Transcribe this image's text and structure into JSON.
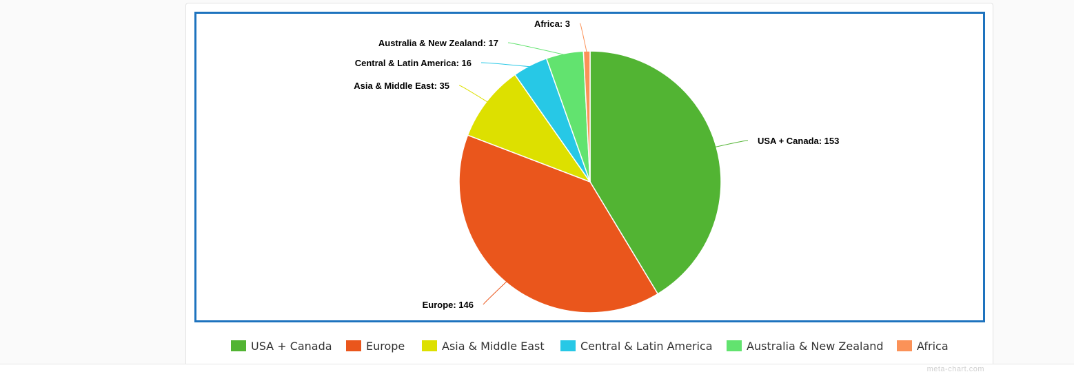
{
  "chart_data": {
    "type": "pie",
    "title": "",
    "categories": [
      "USA + Canada",
      "Europe",
      "Asia & Middle East",
      "Central & Latin America",
      "Australia & New Zealand",
      "Africa"
    ],
    "values": [
      153,
      146,
      35,
      16,
      17,
      3
    ],
    "slice_labels": [
      "USA + Canada: 153",
      "Europe: 146",
      "Asia & Middle East: 35",
      "Central & Latin America: 16",
      "Australia & New Zealand: 17",
      "Africa: 3"
    ],
    "colors": [
      "#52b433",
      "#ea561c",
      "#dde000",
      "#27c8e6",
      "#62e36f",
      "#fb9258"
    ],
    "legend_position": "bottom",
    "slice_border_color": "#ffffff",
    "frame_color": "#1e73be"
  },
  "credit": "meta-chart.com"
}
